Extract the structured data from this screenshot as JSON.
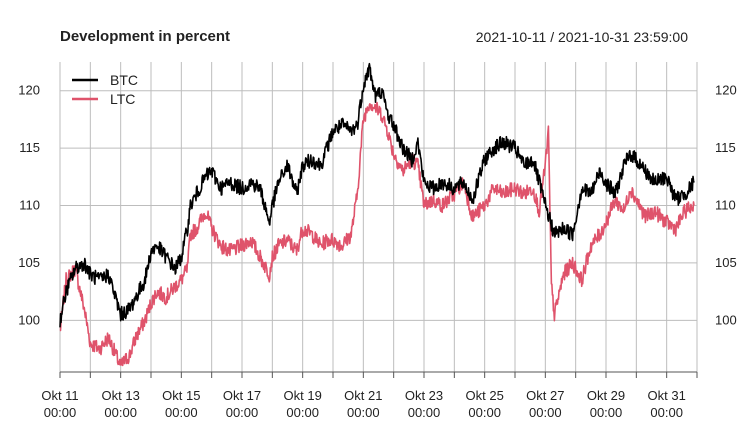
{
  "chart_data": {
    "type": "line",
    "title": "Development in percent",
    "date_range": "2021-10-11 / 2021-10-31 23:59:00",
    "y_ticks": [
      100,
      105,
      110,
      115,
      120
    ],
    "ylim": [
      95.5,
      122.5
    ],
    "x_ticks": [
      {
        "label1": "Okt 11",
        "label2": "00:00",
        "day": 0
      },
      {
        "label1": "Okt 13",
        "label2": "00:00",
        "day": 2
      },
      {
        "label1": "Okt 15",
        "label2": "00:00",
        "day": 4
      },
      {
        "label1": "Okt 17",
        "label2": "00:00",
        "day": 6
      },
      {
        "label1": "Okt 19",
        "label2": "00:00",
        "day": 8
      },
      {
        "label1": "Okt 21",
        "label2": "00:00",
        "day": 10
      },
      {
        "label1": "Okt 23",
        "label2": "00:00",
        "day": 12
      },
      {
        "label1": "Okt 25",
        "label2": "00:00",
        "day": 14
      },
      {
        "label1": "Okt 27",
        "label2": "00:00",
        "day": 16
      },
      {
        "label1": "Okt 29",
        "label2": "00:00",
        "day": 18
      },
      {
        "label1": "Okt 31",
        "label2": "00:00",
        "day": 20
      }
    ],
    "xlim_days": [
      0,
      21
    ],
    "legend_position": "top-left",
    "series": [
      {
        "name": "BTC",
        "color": "#000000",
        "x": [
          0,
          0.2,
          0.5,
          0.8,
          1.0,
          1.3,
          1.6,
          2.0,
          2.3,
          2.5,
          2.8,
          3.0,
          3.2,
          3.5,
          3.8,
          4.0,
          4.2,
          4.3,
          4.5,
          4.8,
          5.0,
          5.3,
          5.6,
          6.0,
          6.3,
          6.6,
          6.9,
          7.0,
          7.2,
          7.5,
          7.8,
          8.0,
          8.3,
          8.6,
          8.8,
          9.0,
          9.3,
          9.6,
          9.8,
          10.0,
          10.2,
          10.4,
          10.6,
          10.8,
          11.0,
          11.3,
          11.6,
          11.8,
          12.0,
          12.3,
          12.6,
          13.0,
          13.3,
          13.6,
          14.0,
          14.3,
          14.6,
          15.0,
          15.3,
          15.6,
          15.8,
          16.0,
          16.3,
          16.6,
          16.9,
          17.2,
          17.5,
          17.8,
          18.0,
          18.3,
          18.6,
          18.8,
          19.0,
          19.3,
          19.6,
          20.0,
          20.3,
          20.6,
          20.9
        ],
        "y": [
          100,
          102.5,
          104.5,
          105,
          104,
          103.5,
          104,
          100.5,
          101,
          102,
          103.5,
          106,
          106.5,
          105.5,
          104.5,
          105.5,
          108,
          110,
          111,
          112.5,
          113,
          111.5,
          112,
          111.5,
          112,
          111.5,
          108.5,
          110,
          112,
          113.5,
          111,
          113.5,
          114,
          113.5,
          115,
          116.5,
          117,
          116.5,
          117,
          120.5,
          122,
          119.5,
          120,
          118,
          117,
          115,
          114,
          115.5,
          112,
          111.5,
          112,
          111.5,
          112,
          110.5,
          114,
          115,
          115.5,
          115,
          113.5,
          114,
          112,
          110,
          107.5,
          108,
          107.5,
          111.5,
          111,
          113,
          112,
          111,
          113.5,
          114.5,
          114,
          113,
          112,
          112.5,
          110.5,
          111,
          112
        ]
      },
      {
        "name": "LTC",
        "color": "#DF536B",
        "x": [
          0,
          0.2,
          0.5,
          0.8,
          1.0,
          1.3,
          1.6,
          2.0,
          2.3,
          2.5,
          2.8,
          3.0,
          3.2,
          3.5,
          3.8,
          4.0,
          4.2,
          4.3,
          4.5,
          4.8,
          5.0,
          5.3,
          5.6,
          6.0,
          6.3,
          6.6,
          6.9,
          7.0,
          7.2,
          7.5,
          7.8,
          8.0,
          8.3,
          8.6,
          8.8,
          9.0,
          9.3,
          9.6,
          9.8,
          10.0,
          10.2,
          10.4,
          10.6,
          10.8,
          11.0,
          11.3,
          11.6,
          11.8,
          12.0,
          12.3,
          12.6,
          13.0,
          13.3,
          13.6,
          14.0,
          14.3,
          14.6,
          15.0,
          15.3,
          15.6,
          15.8,
          16.0,
          16.1,
          16.2,
          16.3,
          16.6,
          16.9,
          17.2,
          17.5,
          17.8,
          18.0,
          18.3,
          18.6,
          18.8,
          19.0,
          19.3,
          19.6,
          20.0,
          20.3,
          20.6,
          20.9
        ],
        "y": [
          99,
          103.5,
          104.5,
          101,
          98,
          97.5,
          98.5,
          96,
          97,
          98.5,
          100,
          101.5,
          102.5,
          102,
          103,
          103.5,
          104.5,
          107.5,
          108,
          109.5,
          108,
          106.5,
          106,
          106.5,
          107,
          105.5,
          104,
          105.5,
          106.5,
          107,
          106,
          108,
          107.5,
          106.5,
          107,
          107,
          106.5,
          107.5,
          111,
          117.5,
          119,
          118.5,
          118,
          116.5,
          114.5,
          113,
          114,
          113.5,
          110,
          110.5,
          110,
          111,
          112,
          109,
          110,
          111.5,
          111,
          111.5,
          111,
          111.5,
          109.5,
          113.5,
          116.5,
          103,
          100.5,
          104,
          105,
          103.5,
          106.5,
          107.5,
          108.5,
          110.5,
          109.5,
          111.5,
          110.5,
          109,
          109.5,
          108.5,
          108,
          109.5,
          110
        ]
      }
    ]
  }
}
